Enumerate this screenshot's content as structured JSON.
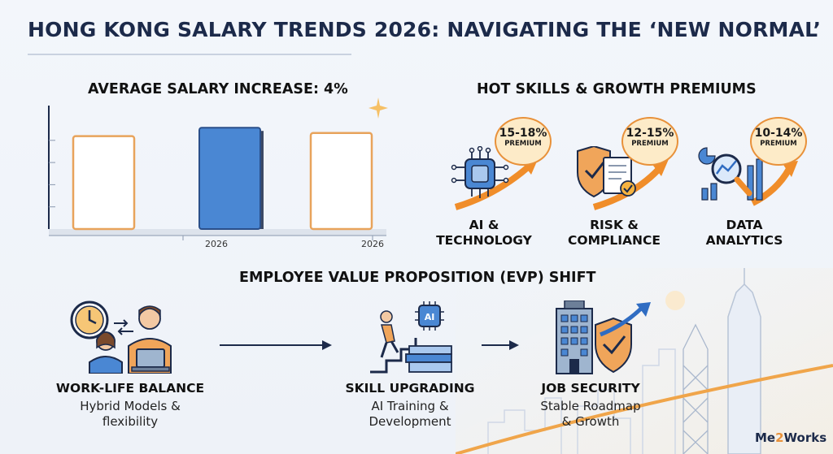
{
  "title": "HONG KONG SALARY TRENDS 2026: NAVIGATING THE ‘NEW NORMAL’",
  "salary": {
    "heading": "AVERAGE SALARY INCREASE: 4%",
    "ticks": [
      "2026",
      "2026"
    ]
  },
  "chart_data": {
    "type": "bar",
    "title": "AVERAGE SALARY INCREASE: 4%",
    "categories": [
      "",
      "2026",
      "2026"
    ],
    "values": [
      88,
      96,
      91
    ],
    "ylim": [
      0,
      100
    ],
    "colors": [
      "#ffffff",
      "#4a87d3",
      "#ffffff"
    ],
    "outline_colors": [
      "#e8a35b",
      "#2a4f8a",
      "#e8a35b"
    ]
  },
  "skills": {
    "heading": "HOT SKILLS & GROWTH PREMIUMS",
    "items": [
      {
        "premium": "15-18%",
        "premium_label": "PREMIUM",
        "label_line1": "AI &",
        "label_line2": "TECHNOLOGY",
        "icon": "ai-chip-icon"
      },
      {
        "premium": "12-15%",
        "premium_label": "PREMIUM",
        "label_line1": "RISK &",
        "label_line2": "COMPLIANCE",
        "icon": "shield-document-icon"
      },
      {
        "premium": "10-14%",
        "premium_label": "PREMIUM",
        "label_line1": "DATA",
        "label_line2": "ANALYTICS",
        "icon": "magnifier-chart-icon"
      }
    ]
  },
  "evp": {
    "heading": "EMPLOYEE VALUE PROPOSITION (EVP) SHIFT",
    "items": [
      {
        "title": "WORK-LIFE BALANCE",
        "desc_line1": "Hybrid Models &",
        "desc_line2": "flexibility",
        "icon": "people-clock-icon"
      },
      {
        "title": "SKILL UPGRADING",
        "desc_line1": "AI Training &",
        "desc_line2": "Development",
        "icon": "climbing-books-icon",
        "badge": "AI"
      },
      {
        "title": "JOB SECURITY",
        "desc_line1": "Stable Roadmap",
        "desc_line2": "& Growth",
        "icon": "building-shield-icon"
      }
    ]
  },
  "logo": {
    "prefix": "Me",
    "num": "2",
    "suffix": "Works"
  },
  "colors": {
    "navy": "#1c2a4a",
    "orange": "#e8913a",
    "blue": "#4a87d3",
    "bubble": "#fdebc8"
  }
}
